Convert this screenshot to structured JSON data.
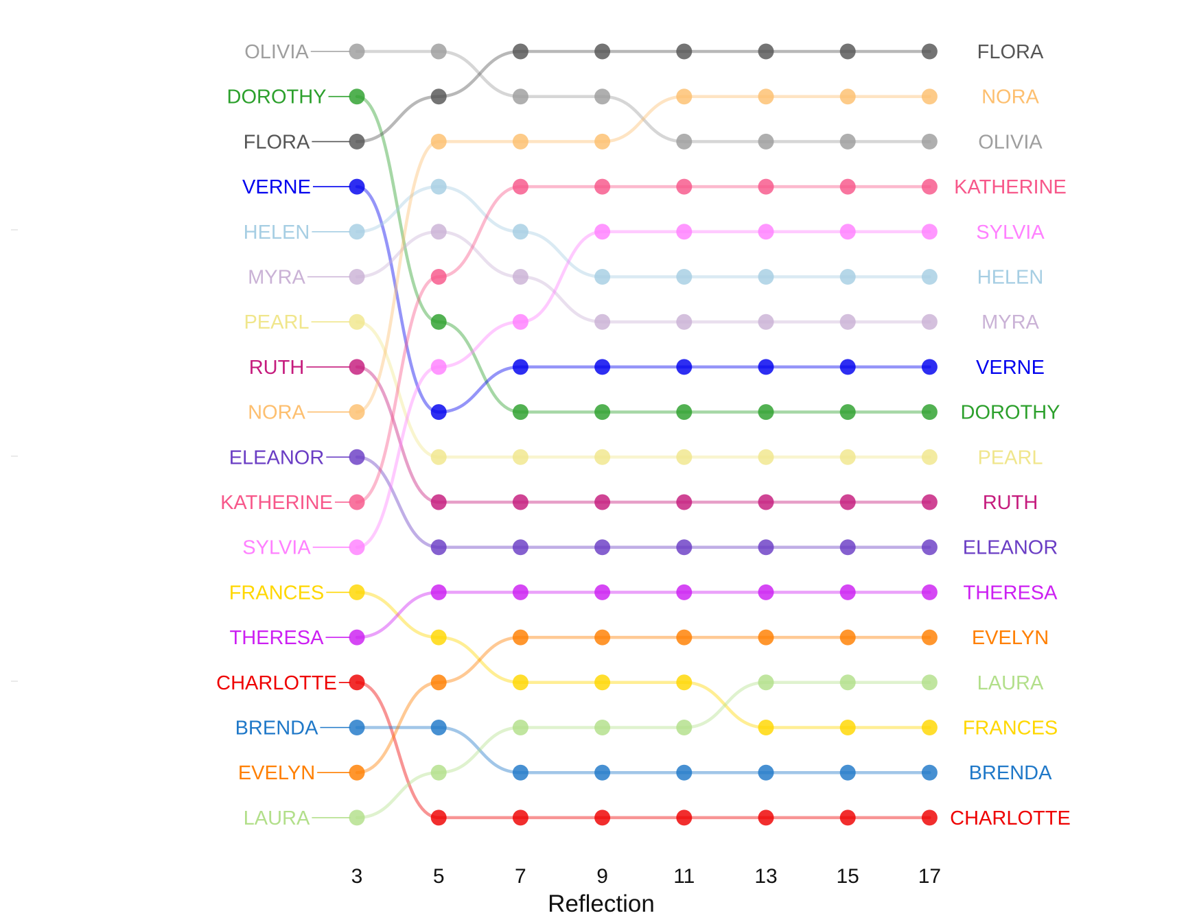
{
  "chart_data": {
    "type": "line",
    "subtype": "bump",
    "title": "",
    "xlabel": "Reflection",
    "ylabel": "",
    "x": [
      3,
      5,
      7,
      9,
      11,
      13,
      15,
      17
    ],
    "x_tick_labels": [
      "3",
      "5",
      "7",
      "9",
      "11",
      "13",
      "15",
      "17"
    ],
    "rank_direction": "1 at top",
    "grid": false,
    "legend": "none (series labelled at both ends)",
    "series": [
      {
        "name": "OLIVIA",
        "color": "#9e9e9e",
        "ranks": [
          1,
          1,
          2,
          2,
          3,
          3,
          3,
          3
        ]
      },
      {
        "name": "DOROTHY",
        "color": "#2ca02c",
        "ranks": [
          2,
          7,
          9,
          9,
          9,
          9,
          9,
          9
        ]
      },
      {
        "name": "FLORA",
        "color": "#555555",
        "ranks": [
          3,
          2,
          1,
          1,
          1,
          1,
          1,
          1
        ]
      },
      {
        "name": "VERNE",
        "color": "#0000ee",
        "ranks": [
          4,
          9,
          8,
          8,
          8,
          8,
          8,
          8
        ]
      },
      {
        "name": "HELEN",
        "color": "#a6cee3",
        "ranks": [
          5,
          4,
          5,
          6,
          6,
          6,
          6,
          6
        ]
      },
      {
        "name": "MYRA",
        "color": "#cab2d6",
        "ranks": [
          6,
          5,
          6,
          7,
          7,
          7,
          7,
          7
        ]
      },
      {
        "name": "PEARL",
        "color": "#f0e68c",
        "ranks": [
          7,
          10,
          10,
          10,
          10,
          10,
          10,
          10
        ]
      },
      {
        "name": "RUTH",
        "color": "#c51b7d",
        "ranks": [
          8,
          11,
          11,
          11,
          11,
          11,
          11,
          11
        ]
      },
      {
        "name": "NORA",
        "color": "#fdbf6f",
        "ranks": [
          9,
          3,
          3,
          3,
          2,
          2,
          2,
          2
        ]
      },
      {
        "name": "ELEANOR",
        "color": "#6a3dc4",
        "ranks": [
          10,
          12,
          12,
          12,
          12,
          12,
          12,
          12
        ]
      },
      {
        "name": "KATHERINE",
        "color": "#f7578a",
        "ranks": [
          11,
          6,
          4,
          4,
          4,
          4,
          4,
          4
        ]
      },
      {
        "name": "SYLVIA",
        "color": "#ff80ff",
        "ranks": [
          12,
          8,
          7,
          5,
          5,
          5,
          5,
          5
        ]
      },
      {
        "name": "FRANCES",
        "color": "#ffd700",
        "ranks": [
          13,
          14,
          15,
          15,
          15,
          16,
          16,
          16
        ]
      },
      {
        "name": "THERESA",
        "color": "#cc1ff2",
        "ranks": [
          14,
          13,
          13,
          13,
          13,
          13,
          13,
          13
        ]
      },
      {
        "name": "CHARLOTTE",
        "color": "#ee0000",
        "ranks": [
          15,
          18,
          18,
          18,
          18,
          18,
          18,
          18
        ]
      },
      {
        "name": "BRENDA",
        "color": "#1f78c8",
        "ranks": [
          16,
          16,
          17,
          17,
          17,
          17,
          17,
          17
        ]
      },
      {
        "name": "EVELYN",
        "color": "#ff7f00",
        "ranks": [
          17,
          15,
          14,
          14,
          14,
          14,
          14,
          14
        ]
      },
      {
        "name": "LAURA",
        "color": "#b2df8a",
        "ranks": [
          18,
          17,
          16,
          16,
          16,
          15,
          15,
          15
        ]
      }
    ]
  }
}
